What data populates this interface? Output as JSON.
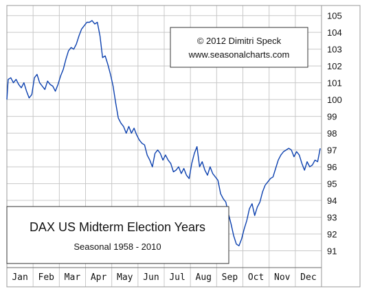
{
  "copyright": {
    "line1": "© 2012  Dimitri Speck",
    "line2": "www.seasonalcharts.com"
  },
  "title_box": {
    "title": "DAX US Midterm Election Years",
    "subtitle": "Seasonal 1958 - 2010"
  },
  "colors": {
    "line": "#0a3fae",
    "grid": "#c8c8c8",
    "frame": "#999999",
    "background": "#ffffff"
  },
  "chart_data": {
    "type": "line",
    "title": "DAX US Midterm Election Years",
    "subtitle": "Seasonal 1958 - 2010",
    "xlabel": "",
    "ylabel": "",
    "categories": [
      "Jan",
      "Feb",
      "Mar",
      "Apr",
      "May",
      "Jun",
      "Jul",
      "Aug",
      "Sep",
      "Oct",
      "Nov",
      "Dec"
    ],
    "ylim": [
      90,
      105.6
    ],
    "yticks": [
      91,
      92,
      93,
      94,
      95,
      96,
      97,
      98,
      99,
      100,
      101,
      102,
      103,
      104,
      105
    ],
    "grid": true,
    "y_axis_side": "right",
    "series": [
      {
        "x": [
          0.0,
          0.05,
          0.15,
          0.25,
          0.35,
          0.45,
          0.55,
          0.65,
          0.75,
          0.85,
          0.95,
          1.05,
          1.15,
          1.25,
          1.35,
          1.45,
          1.55,
          1.65,
          1.75,
          1.85,
          1.95,
          2.05,
          2.15,
          2.25,
          2.35,
          2.45,
          2.55,
          2.65,
          2.75,
          2.85,
          2.95,
          3.05,
          3.15,
          3.25,
          3.35,
          3.45,
          3.55,
          3.65,
          3.75,
          3.85,
          3.95,
          4.05,
          4.15,
          4.25,
          4.35,
          4.45,
          4.55,
          4.65,
          4.75,
          4.85,
          4.95,
          5.05,
          5.15,
          5.25,
          5.35,
          5.45,
          5.55,
          5.65,
          5.75,
          5.85,
          5.95,
          6.05,
          6.15,
          6.25,
          6.35,
          6.45,
          6.55,
          6.65,
          6.75,
          6.85,
          6.95,
          7.05,
          7.15,
          7.25,
          7.35,
          7.45,
          7.55,
          7.65,
          7.75,
          7.85,
          7.95,
          8.05,
          8.15,
          8.25,
          8.35,
          8.45,
          8.55,
          8.65,
          8.75,
          8.85,
          8.95,
          9.05,
          9.15,
          9.25,
          9.35,
          9.45,
          9.55,
          9.65,
          9.75,
          9.85,
          9.95,
          10.05,
          10.15,
          10.25,
          10.35,
          10.45,
          10.55,
          10.65,
          10.75,
          10.85,
          10.95,
          11.05,
          11.15,
          11.25,
          11.35,
          11.45,
          11.55,
          11.65,
          11.75,
          11.85,
          11.95
        ],
        "values": [
          100.0,
          101.2,
          101.3,
          101.0,
          101.2,
          100.9,
          100.7,
          101.0,
          100.5,
          100.1,
          100.3,
          101.3,
          101.5,
          101.0,
          100.8,
          100.6,
          101.1,
          100.9,
          100.8,
          100.5,
          100.9,
          101.4,
          101.8,
          102.4,
          102.9,
          103.1,
          103.0,
          103.3,
          103.8,
          104.2,
          104.4,
          104.6,
          104.6,
          104.7,
          104.5,
          104.6,
          103.8,
          102.5,
          102.6,
          102.1,
          101.5,
          100.8,
          99.8,
          98.9,
          98.6,
          98.4,
          98.0,
          98.4,
          98.0,
          98.3,
          97.9,
          97.6,
          97.4,
          97.3,
          96.7,
          96.4,
          96.0,
          96.8,
          97.0,
          96.8,
          96.4,
          96.7,
          96.4,
          96.2,
          95.7,
          95.8,
          96.0,
          95.6,
          95.9,
          95.5,
          95.3,
          96.2,
          96.8,
          97.2,
          96.0,
          96.3,
          95.8,
          95.5,
          96.0,
          95.6,
          95.4,
          95.2,
          94.4,
          94.1,
          93.9,
          93.2,
          92.6,
          91.9,
          91.4,
          91.3,
          91.7,
          92.3,
          92.8,
          93.5,
          93.8,
          93.1,
          93.6,
          93.9,
          94.5,
          94.9,
          95.1,
          95.3,
          95.4,
          95.9,
          96.4,
          96.7,
          96.9,
          97.0,
          97.1,
          97.0,
          96.6,
          96.9,
          96.7,
          96.2,
          95.8,
          96.3,
          96.0,
          96.1,
          96.4,
          96.3,
          97.1
        ]
      }
    ]
  }
}
